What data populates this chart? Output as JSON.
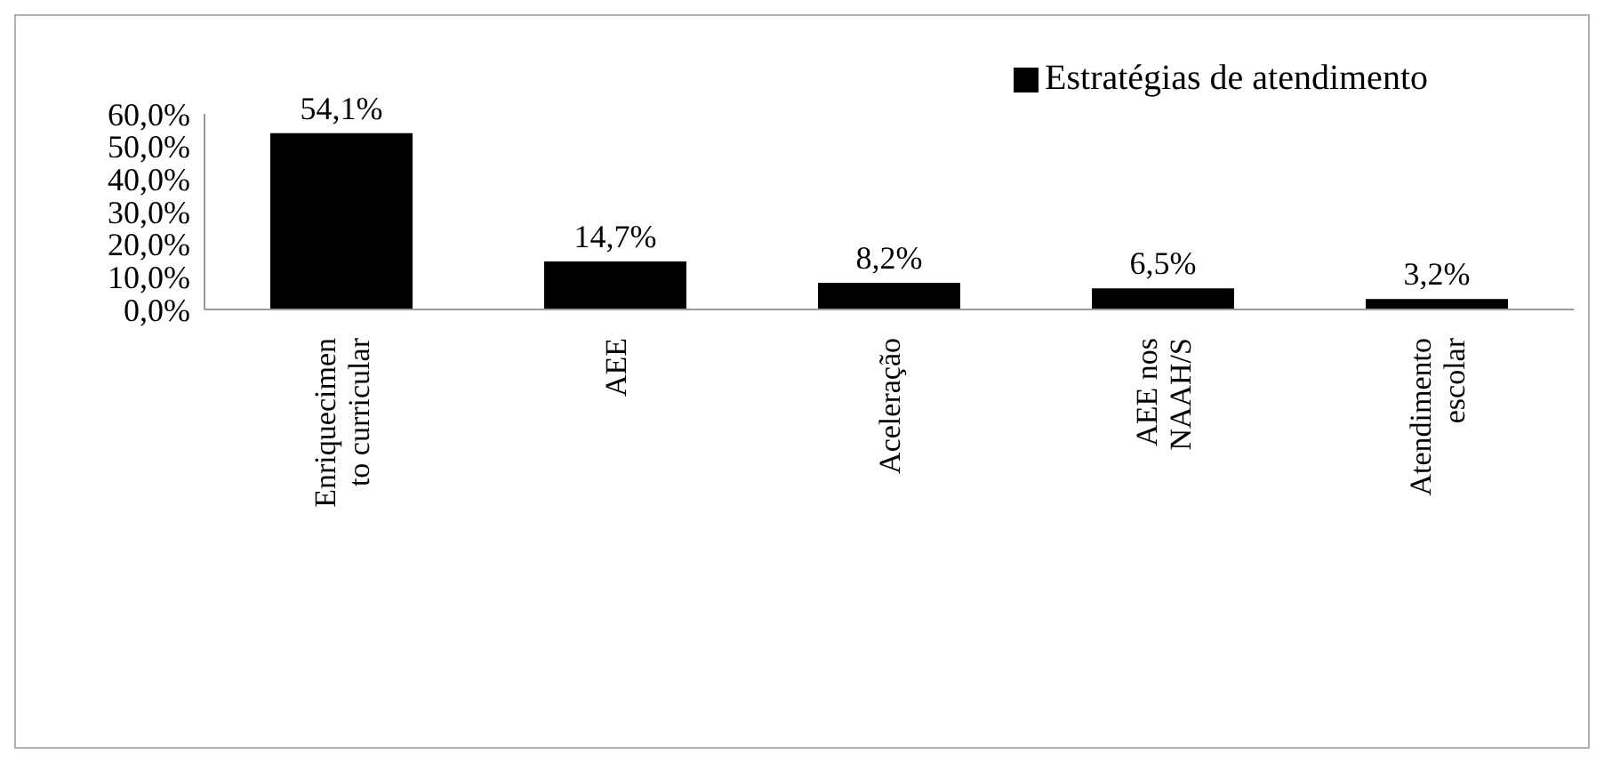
{
  "chart_data": {
    "type": "bar",
    "categories": [
      "Enriquecimen to curricular",
      "AEE",
      "Aceleração",
      "AEE nos NAAH/S",
      "Atendimento escolar"
    ],
    "series": [
      {
        "name": "Estratégias de atendimento",
        "color": "#000000",
        "values": [
          54.1,
          14.7,
          8.2,
          6.5,
          3.2
        ],
        "value_labels": [
          "54,1%",
          "14,7%",
          "8,2%",
          "6,5%",
          "3,2%"
        ]
      }
    ],
    "ylim": [
      0,
      60
    ],
    "yticks": [
      {
        "value": 0,
        "label": "0,0%"
      },
      {
        "value": 10,
        "label": "10,0%"
      },
      {
        "value": 20,
        "label": "20,0%"
      },
      {
        "value": 30,
        "label": "30,0%"
      },
      {
        "value": 40,
        "label": "40,0%"
      },
      {
        "value": 50,
        "label": "50,0%"
      },
      {
        "value": 60,
        "label": "60,0%"
      }
    ],
    "grid": false,
    "legend": "top right"
  }
}
